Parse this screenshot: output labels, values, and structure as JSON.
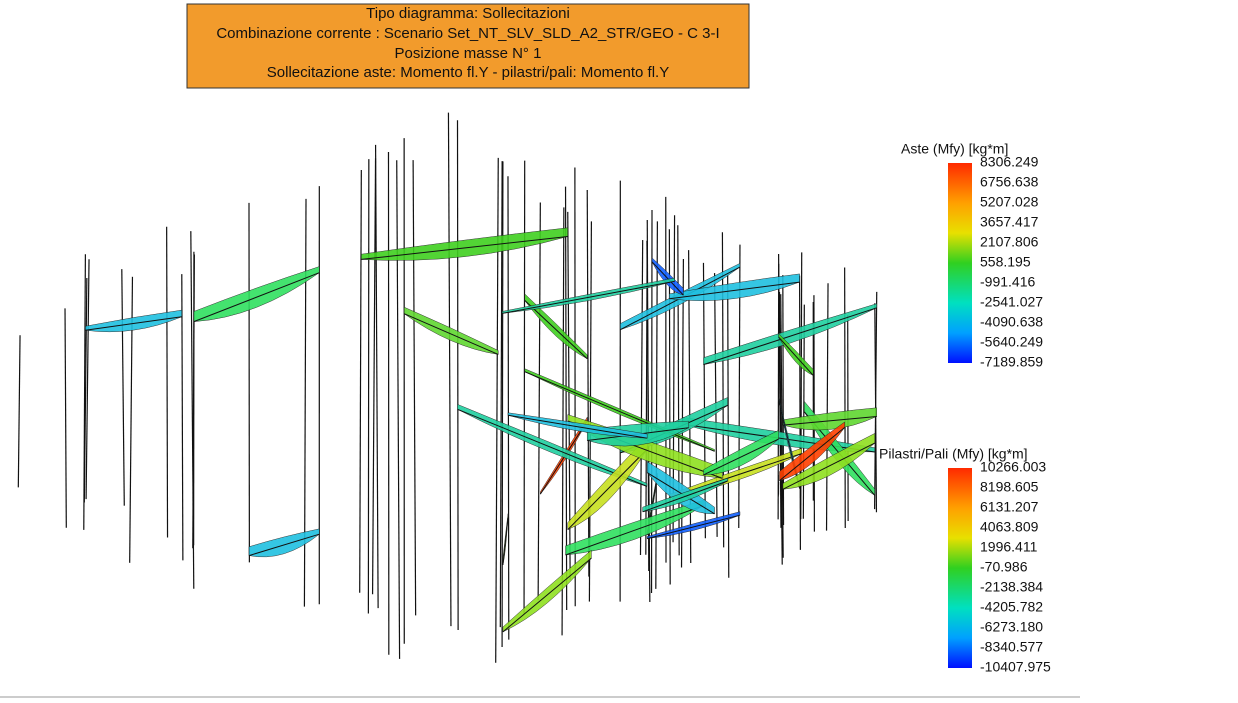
{
  "header": {
    "lines": [
      "Tipo diagramma: Sollecitazioni",
      "Combinazione corrente : Scenario Set_NT_SLV_SLD_A2_STR/GEO - C 3-I",
      "Posizione masse N° 1",
      "Sollecitazione aste: Momento fl.Y - pilastri/pali: Momento fl.Y"
    ]
  },
  "legend_aste": {
    "title": "Aste (Mfy) [kg*m]",
    "labels": [
      "8306.249",
      "6756.638",
      "5207.028",
      "3657.417",
      "2107.806",
      "558.195",
      "-991.416",
      "-2541.027",
      "-4090.638",
      "-5640.249",
      "-7189.859"
    ]
  },
  "legend_pilastri": {
    "title": "Pilastri/Pali (Mfy) [kg*m]",
    "labels": [
      "10266.003",
      "8198.605",
      "6131.207",
      "4063.809",
      "1996.411",
      "-70.986",
      "-2138.384",
      "-4205.782",
      "-6273.180",
      "-8340.577",
      "-10407.975"
    ]
  }
}
